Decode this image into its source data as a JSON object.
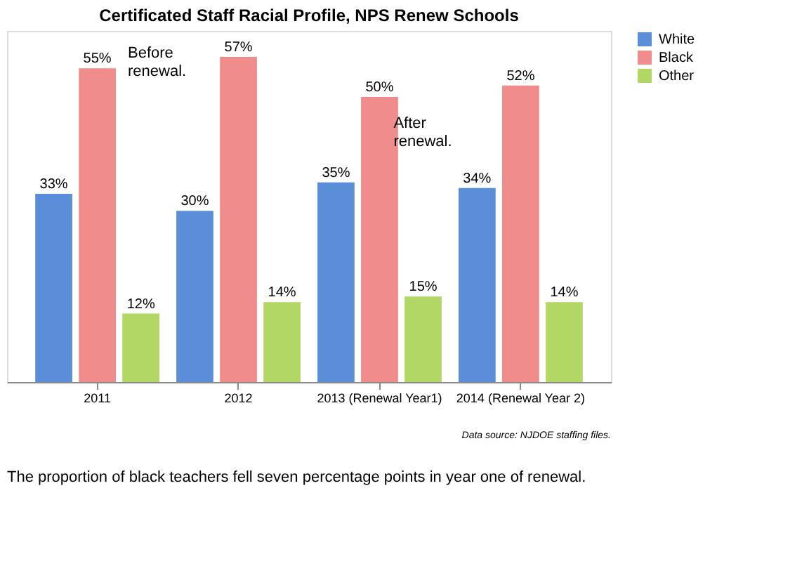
{
  "chart_data": {
    "type": "bar",
    "title": "Certificated Staff Racial Profile, NPS Renew Schools",
    "categories": [
      "2011",
      "2012",
      "2013 (Renewal Year1)",
      "2014 (Renewal Year 2)"
    ],
    "series": [
      {
        "name": "White",
        "color": "#5b8ed8",
        "values": [
          33,
          30,
          35,
          34
        ],
        "value_labels": [
          "33%",
          "30%",
          "35%",
          "34%"
        ]
      },
      {
        "name": "Black",
        "color": "#f08c8c",
        "values": [
          55,
          57,
          50,
          52
        ],
        "value_labels": [
          "55%",
          "57%",
          "50%",
          "52%"
        ]
      },
      {
        "name": "Other",
        "color": "#b3d765",
        "values": [
          12,
          14,
          15,
          14
        ],
        "value_labels": [
          "12%",
          "14%",
          "15%",
          "14%"
        ]
      }
    ],
    "annotations": [
      "Before renewal.",
      "After renewal.",
      "Data source: NJDOE staffing files.",
      "The proportion of black teachers fell seven percentage points in year one of renewal."
    ],
    "grid": false,
    "legend": "right"
  }
}
